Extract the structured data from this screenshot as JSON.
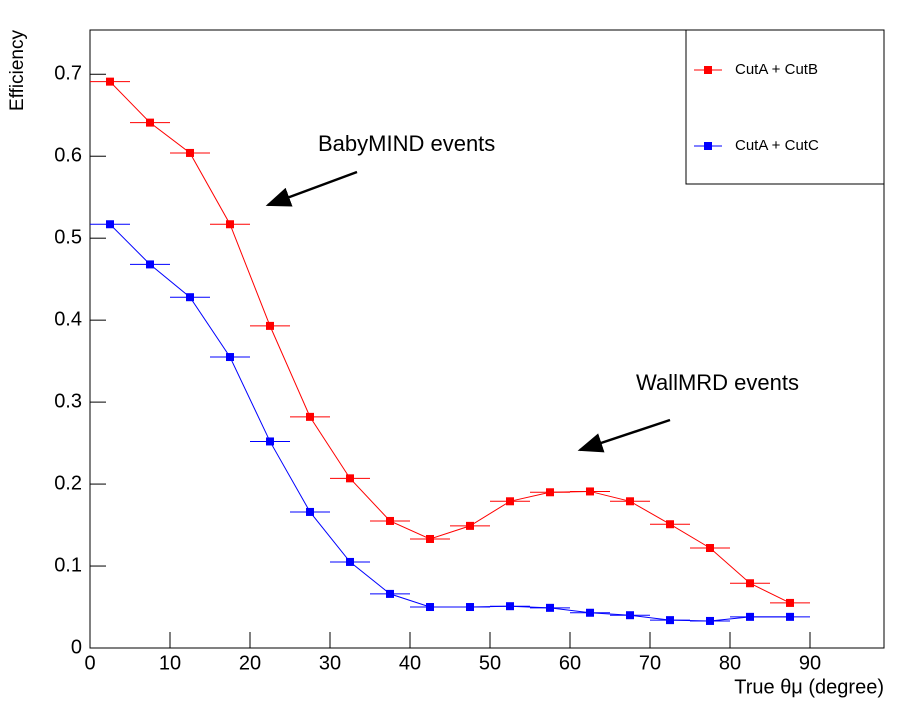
{
  "chart_data": {
    "type": "line",
    "x_label": "True θμ (degree)",
    "y_label": "Efficiency",
    "x": [
      2.5,
      7.5,
      12.5,
      17.5,
      22.5,
      27.5,
      32.5,
      37.5,
      42.5,
      47.5,
      52.5,
      57.5,
      62.5,
      67.5,
      72.5,
      77.5,
      82.5,
      87.5
    ],
    "xerr": [
      2.5,
      2.5,
      2.5,
      2.5,
      2.5,
      2.5,
      2.5,
      2.5,
      2.5,
      2.5,
      2.5,
      2.5,
      2.5,
      2.5,
      2.5,
      2.5,
      2.5,
      2.5
    ],
    "series": [
      {
        "name": "CutA + CutB",
        "color": "#ff0000",
        "values": [
          0.691,
          0.641,
          0.604,
          0.517,
          0.393,
          0.282,
          0.207,
          0.155,
          0.133,
          0.149,
          0.179,
          0.19,
          0.191,
          0.179,
          0.151,
          0.122,
          0.079,
          0.055
        ]
      },
      {
        "name": "CutA + CutC",
        "color": "#0000ff",
        "values": [
          0.517,
          0.468,
          0.428,
          0.355,
          0.252,
          0.166,
          0.105,
          0.066,
          0.05,
          0.05,
          0.051,
          0.049,
          0.043,
          0.04,
          0.034,
          0.033,
          0.038,
          0.038
        ]
      }
    ],
    "xlim": [
      0,
      99.25
    ],
    "ylim": [
      0,
      0.754
    ],
    "xticks": [
      0,
      10,
      20,
      30,
      40,
      50,
      60,
      70,
      80,
      90
    ],
    "yticks": [
      0,
      0.1,
      0.2,
      0.3,
      0.4,
      0.5,
      0.6,
      0.7
    ],
    "legend": "top-right",
    "annotations": [
      "BabyMIND events",
      "WallMRD events"
    ]
  }
}
